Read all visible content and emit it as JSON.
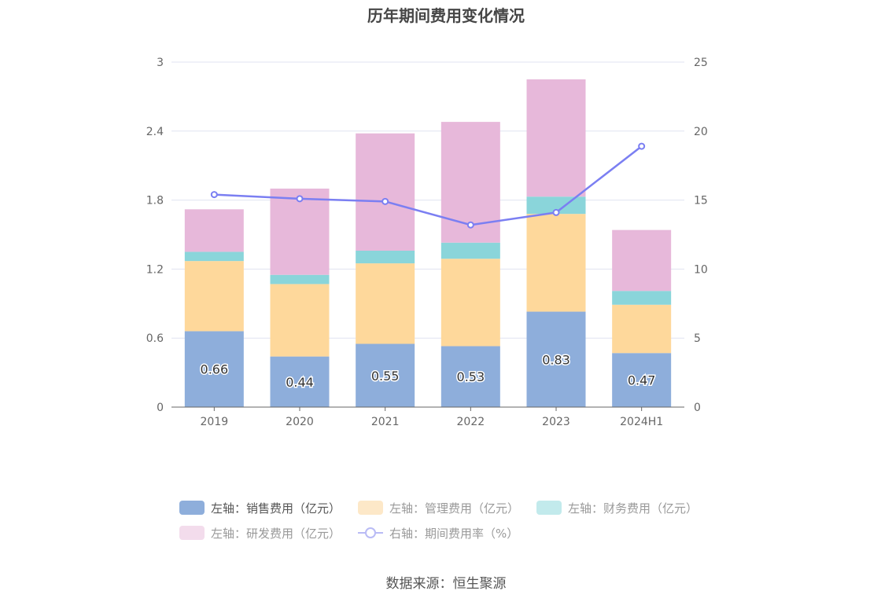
{
  "title": "历年期间费用变化情况",
  "source": "数据来源：恒生聚源",
  "chart_data": {
    "type": "bar",
    "stacked": true,
    "categories": [
      "2019",
      "2020",
      "2021",
      "2022",
      "2023",
      "2024H1"
    ],
    "series": [
      {
        "name": "左轴：销售费用（亿元）",
        "axis": "left",
        "color": "#8eaedb",
        "values": [
          0.66,
          0.44,
          0.55,
          0.53,
          0.83,
          0.47
        ],
        "labels": [
          "0.66",
          "0.44",
          "0.55",
          "0.53",
          "0.83",
          "0.47"
        ]
      },
      {
        "name": "左轴：管理费用（亿元）",
        "axis": "left",
        "color": "#fed89b",
        "values": [
          0.61,
          0.63,
          0.7,
          0.76,
          0.85,
          0.42
        ]
      },
      {
        "name": "左轴：财务费用（亿元）",
        "axis": "left",
        "color": "#8ad5da",
        "values": [
          0.08,
          0.08,
          0.11,
          0.14,
          0.15,
          0.12
        ]
      },
      {
        "name": "左轴：研发费用（亿元）",
        "axis": "left",
        "color": "#e7b8da",
        "values": [
          0.37,
          0.75,
          1.02,
          1.05,
          1.02,
          0.53
        ]
      }
    ],
    "line_series": {
      "name": "右轴：期间费用率（%）",
      "axis": "right",
      "color": "#7b7ff2",
      "values": [
        15.4,
        15.1,
        14.9,
        13.2,
        14.1,
        18.9
      ]
    },
    "y_left": {
      "min": 0,
      "max": 3,
      "ticks": [
        "0",
        "0.6",
        "1.2",
        "1.8",
        "2.4",
        "3"
      ]
    },
    "y_right": {
      "min": 0,
      "max": 25,
      "ticks": [
        "0",
        "5",
        "10",
        "15",
        "20",
        "25"
      ]
    },
    "legend_position": "bottom",
    "grid": true
  }
}
